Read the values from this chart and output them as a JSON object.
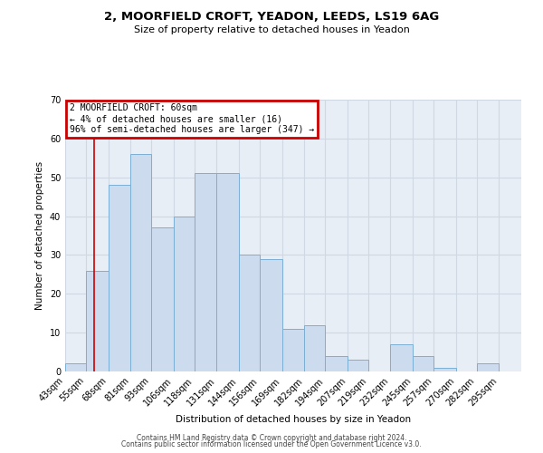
{
  "title": "2, MOORFIELD CROFT, YEADON, LEEDS, LS19 6AG",
  "subtitle": "Size of property relative to detached houses in Yeadon",
  "xlabel": "Distribution of detached houses by size in Yeadon",
  "ylabel": "Number of detached properties",
  "footer_lines": [
    "Contains HM Land Registry data © Crown copyright and database right 2024.",
    "Contains public sector information licensed under the Open Government Licence v3.0."
  ],
  "bins": [
    43,
    55,
    68,
    81,
    93,
    106,
    118,
    131,
    144,
    156,
    169,
    182,
    194,
    207,
    219,
    232,
    245,
    257,
    270,
    282,
    295,
    308
  ],
  "bin_labels": [
    "43sqm",
    "55sqm",
    "68sqm",
    "81sqm",
    "93sqm",
    "106sqm",
    "118sqm",
    "131sqm",
    "144sqm",
    "156sqm",
    "169sqm",
    "182sqm",
    "194sqm",
    "207sqm",
    "219sqm",
    "232sqm",
    "245sqm",
    "257sqm",
    "270sqm",
    "282sqm",
    "295sqm"
  ],
  "counts": [
    2,
    26,
    48,
    56,
    37,
    40,
    51,
    51,
    30,
    29,
    11,
    12,
    4,
    3,
    0,
    7,
    4,
    1,
    0,
    2,
    0
  ],
  "bar_color": "#ccdcee",
  "bar_edge_color": "#7bafd4",
  "grid_color": "#d0d8e4",
  "background_color": "#e8eef5",
  "annotation_box_text": "2 MOORFIELD CROFT: 60sqm\n← 4% of detached houses are smaller (16)\n96% of semi-detached houses are larger (347) →",
  "annotation_box_color": "#cc0000",
  "reference_line_x": 60,
  "reference_line_color": "#cc0000",
  "ylim": [
    0,
    70
  ],
  "yticks": [
    0,
    10,
    20,
    30,
    40,
    50,
    60,
    70
  ]
}
